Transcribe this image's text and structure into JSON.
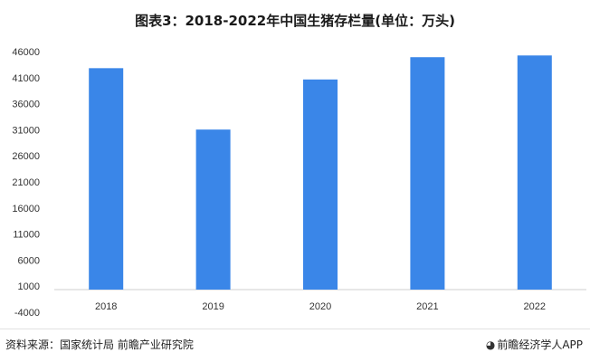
{
  "title": "图表3：2018-2022年中国生猪存栏量(单位：万头)",
  "footer": {
    "source": "资料来源：国家统计局 前瞻产业研究院",
    "brand": "前瞻经济学人APP",
    "brand_icon": "qianzhan-logo-icon"
  },
  "colors": {
    "bar": "#3a86e8"
  },
  "chart_data": {
    "type": "bar",
    "categories": [
      "2018",
      "2019",
      "2020",
      "2021",
      "2022"
    ],
    "values": [
      42817,
      31041,
      40650,
      44922,
      45256
    ],
    "yticks": [
      "46000",
      "41000",
      "36000",
      "31000",
      "26000",
      "21000",
      "16000",
      "11000",
      "6000",
      "1000",
      "-4000"
    ],
    "ylim": [
      -4000,
      46000
    ],
    "xlabel": "",
    "ylabel": "",
    "grid": false,
    "legend": "none"
  }
}
